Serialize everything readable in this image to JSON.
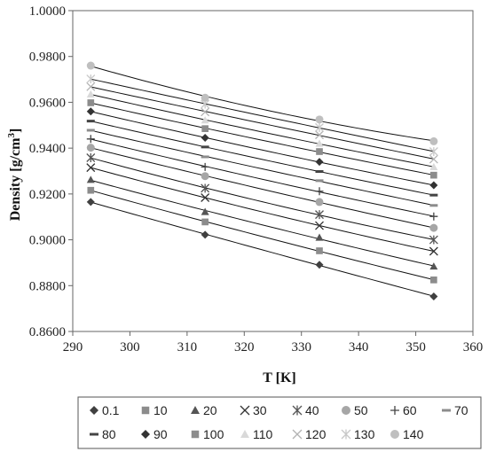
{
  "chart_data": {
    "type": "scatter",
    "title": "",
    "xlabel": "T [K]",
    "ylabel": "Density [g/cm",
    "ylabel_sup": "3",
    "ylabel_end": "]",
    "xlim": [
      290,
      360
    ],
    "ylim": [
      0.86,
      1.0
    ],
    "x_ticks": [
      "290",
      "300",
      "310",
      "320",
      "330",
      "340",
      "350",
      "360"
    ],
    "y_ticks": [
      "0.8600",
      "0.8800",
      "0.9000",
      "0.9200",
      "0.9400",
      "0.9600",
      "0.9800",
      "1.0000"
    ],
    "grid": false,
    "legend_position": "bottom",
    "fit_lines": true,
    "x": [
      293.15,
      313.15,
      333.15,
      353.15
    ],
    "series": [
      {
        "name": "0.1",
        "marker": "diamond",
        "color": "#404040",
        "values": [
          0.9165,
          0.9022,
          0.8891,
          0.8753
        ]
      },
      {
        "name": "10",
        "marker": "square",
        "color": "#8c8c8c",
        "values": [
          0.9216,
          0.9078,
          0.8952,
          0.8825
        ]
      },
      {
        "name": "20",
        "marker": "triangle",
        "color": "#555555",
        "values": [
          0.9262,
          0.9122,
          0.901,
          0.8884
        ]
      },
      {
        "name": "30",
        "marker": "x",
        "color": "#333333",
        "values": [
          0.9315,
          0.9184,
          0.9062,
          0.895
        ]
      },
      {
        "name": "40",
        "marker": "star",
        "color": "#555555",
        "values": [
          0.9358,
          0.9225,
          0.911,
          0.9
        ]
      },
      {
        "name": "50",
        "marker": "circle",
        "color": "#a6a6a6",
        "values": [
          0.9402,
          0.9278,
          0.9165,
          0.9052
        ]
      },
      {
        "name": "60",
        "marker": "plus",
        "color": "#444444",
        "values": [
          0.944,
          0.9318,
          0.9212,
          0.9102
        ]
      },
      {
        "name": "70",
        "marker": "dash",
        "color": "#8c8c8c",
        "values": [
          0.9478,
          0.9362,
          0.9258,
          0.915
        ]
      },
      {
        "name": "80",
        "marker": "dash",
        "color": "#444444",
        "values": [
          0.9518,
          0.9405,
          0.9298,
          0.9195
        ]
      },
      {
        "name": "90",
        "marker": "diamond",
        "color": "#333333",
        "values": [
          0.956,
          0.9445,
          0.934,
          0.9238
        ]
      },
      {
        "name": "100",
        "marker": "square",
        "color": "#8c8c8c",
        "values": [
          0.9598,
          0.9485,
          0.9385,
          0.9282
        ]
      },
      {
        "name": "110",
        "marker": "triangle",
        "color": "#d9d9d9",
        "values": [
          0.9635,
          0.9522,
          0.942,
          0.9318
        ]
      },
      {
        "name": "120",
        "marker": "x",
        "color": "#b3b3b3",
        "values": [
          0.9668,
          0.9558,
          0.9458,
          0.9352
        ]
      },
      {
        "name": "130",
        "marker": "star",
        "color": "#c8c8c8",
        "values": [
          0.9702,
          0.9592,
          0.949,
          0.9385
        ]
      },
      {
        "name": "140",
        "marker": "circle",
        "color": "#bfbfbf",
        "values": [
          0.976,
          0.962,
          0.9525,
          0.943
        ]
      }
    ]
  }
}
